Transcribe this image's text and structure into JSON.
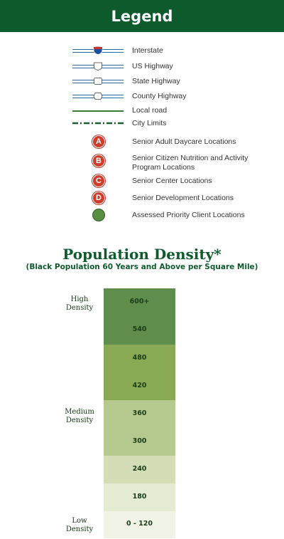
{
  "header": {
    "title": "Legend"
  },
  "legend": {
    "roads": [
      {
        "label": "Interstate",
        "icon": "interstate-shield-icon"
      },
      {
        "label": "US Highway",
        "icon": "us-highway-shield-icon"
      },
      {
        "label": "State Highway",
        "icon": "state-highway-shield-icon"
      },
      {
        "label": "County Highway",
        "icon": "county-highway-shield-icon"
      },
      {
        "label": "Local road",
        "icon": "local-road-line-icon"
      },
      {
        "label": "City Limits",
        "icon": "city-limits-line-icon"
      }
    ],
    "markers": [
      {
        "letter": "A",
        "label": "Senior Adult Daycare Locations",
        "color": "#cf3c2a"
      },
      {
        "letter": "B",
        "label_line1": "Senior Citizen Nutrition and Activity",
        "label_line2": "Program Locations",
        "color": "#cf3c2a"
      },
      {
        "letter": "C",
        "label": "Senior Center Locations",
        "color": "#cf3c2a"
      },
      {
        "letter": "D",
        "label": "Senior Development Locations",
        "color": "#cf3c2a"
      },
      {
        "letter": "",
        "label": "Assessed Priority Client Locations",
        "color": "#5a8f43"
      }
    ]
  },
  "density": {
    "title": "Population Density*",
    "subtitle": "(Black Population 60 Years and Above per Square Mile)",
    "high_line1": "High",
    "high_line2": "Density",
    "medium_line1": "Medium",
    "medium_line2": "Density",
    "low_line1": "Low",
    "low_line2": "Density",
    "bands": [
      {
        "label": "600+",
        "color": "#5f8d4b"
      },
      {
        "label": "540",
        "color": "#5f8d4b"
      },
      {
        "label": "480",
        "color": "#8aa954"
      },
      {
        "label": "420",
        "color": "#8aa954"
      },
      {
        "label": "360",
        "color": "#b6c98f"
      },
      {
        "label": "300",
        "color": "#b6c98f"
      },
      {
        "label": "240",
        "color": "#d3deb7"
      },
      {
        "label": "180",
        "color": "#e4ebd3"
      },
      {
        "label": "0 - 120",
        "color": "#f1f3e7"
      }
    ]
  }
}
